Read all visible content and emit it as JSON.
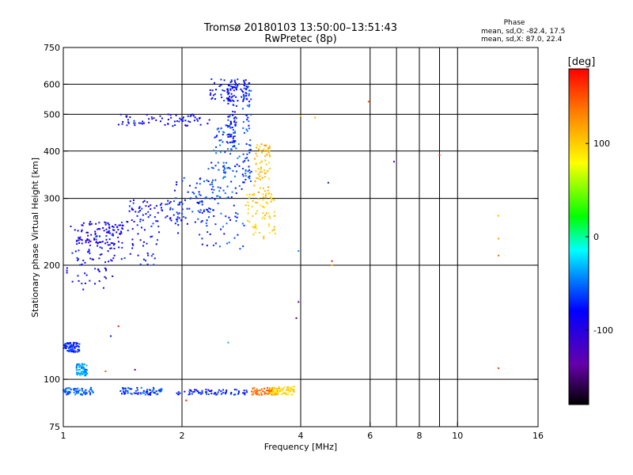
{
  "header": {
    "title_line1": "Tromsø 20180103 13:50:00–13:51:43",
    "title_line2": "RwPretec (8p)",
    "phase_heading": "Phase",
    "phase_line1": "mean, sd,O: -82.4, 17.5",
    "phase_line2": "mean, sd,X:  87.0, 22.4"
  },
  "chart_data": {
    "type": "scatter",
    "xlabel": "Frequency [MHz]",
    "ylabel": "Stationary phase Virtual Height [km]",
    "x_scale": "log",
    "y_scale": "log",
    "xlim": [
      1,
      16
    ],
    "ylim": [
      75,
      750
    ],
    "x_ticks": [
      1,
      2,
      4,
      6,
      8,
      10,
      16
    ],
    "x_tick_labels": [
      "1",
      "2",
      "4",
      "6",
      "8",
      "10",
      "16"
    ],
    "x_grid": [
      2,
      4,
      6,
      7,
      8,
      9,
      10
    ],
    "y_ticks": [
      75,
      100,
      200,
      300,
      400,
      500,
      600,
      750
    ],
    "y_tick_labels": [
      "75",
      "100",
      "200",
      "300",
      "400",
      "500",
      "600",
      "750"
    ],
    "y_grid": [
      100,
      200,
      300,
      400,
      500,
      600
    ],
    "grid": true,
    "colorbar": {
      "label": "[deg]",
      "range": [
        -180,
        180
      ],
      "ticks": [
        100,
        0,
        -100
      ],
      "tick_labels": [
        "100",
        "0",
        "-100"
      ]
    },
    "color_scale_hex": [
      "#000000",
      "#6600aa",
      "#0000ff",
      "#0088ff",
      "#00ffff",
      "#00ff00",
      "#ffff00",
      "#ff8800",
      "#ff0000"
    ],
    "clusters": [
      {
        "x": [
          1.02,
          1.35
        ],
        "h": [
          172,
          260
        ],
        "phase": -105
      },
      {
        "x": [
          1.08,
          1.42
        ],
        "h": [
          228,
          262
        ],
        "phase": -112
      },
      {
        "x": [
          1.15,
          1.75
        ],
        "h": [
          200,
          260
        ],
        "phase": -98
      },
      {
        "x": [
          1.45,
          2.05
        ],
        "h": [
          260,
          300
        ],
        "phase": -100
      },
      {
        "x": [
          1.9,
          2.45
        ],
        "h": [
          240,
          340
        ],
        "phase": -92
      },
      {
        "x": [
          2.2,
          2.9
        ],
        "h": [
          220,
          380
        ],
        "phase": -88
      },
      {
        "x": [
          2.4,
          2.8
        ],
        "h": [
          300,
          470
        ],
        "phase": -82
      },
      {
        "x": [
          2.6,
          2.75
        ],
        "h": [
          420,
          600
        ],
        "phase": -95
      },
      {
        "x": [
          2.35,
          2.95
        ],
        "h": [
          540,
          620
        ],
        "phase": -100
      },
      {
        "x": [
          1.38,
          2.35
        ],
        "h": [
          465,
          500
        ],
        "phase": -102
      },
      {
        "x": [
          2.85,
          3.0
        ],
        "h": [
          330,
          610
        ],
        "phase": -90
      },
      {
        "x": [
          2.9,
          3.45
        ],
        "h": [
          235,
          310
        ],
        "phase": 100
      },
      {
        "x": [
          3.05,
          3.35
        ],
        "h": [
          300,
          420
        ],
        "phase": 110
      },
      {
        "x": [
          1.0,
          1.1
        ],
        "h": [
          118,
          125
        ],
        "phase": -92
      },
      {
        "x": [
          1.08,
          1.15
        ],
        "h": [
          102,
          110
        ],
        "phase": -65
      },
      {
        "x": [
          1.0,
          1.2
        ],
        "h": [
          91,
          95
        ],
        "phase": -80
      },
      {
        "x": [
          1.38,
          1.78
        ],
        "h": [
          91,
          95
        ],
        "phase": -88
      },
      {
        "x": [
          1.92,
          2.95
        ],
        "h": [
          91,
          94
        ],
        "phase": -95
      },
      {
        "x": [
          3.0,
          3.5
        ],
        "h": [
          91,
          95
        ],
        "phase": 140
      },
      {
        "x": [
          3.35,
          3.85
        ],
        "h": [
          91,
          96
        ],
        "phase": 95
      }
    ],
    "points": [
      {
        "x": 4.35,
        "h": 490,
        "phase": 110
      },
      {
        "x": 4.0,
        "h": 495,
        "phase": 105
      },
      {
        "x": 5.95,
        "h": 540,
        "phase": 150
      },
      {
        "x": 6.9,
        "h": 375,
        "phase": -140
      },
      {
        "x": 9.0,
        "h": 390,
        "phase": 170
      },
      {
        "x": 4.7,
        "h": 330,
        "phase": -95
      },
      {
        "x": 4.8,
        "h": 205,
        "phase": 175
      },
      {
        "x": 4.8,
        "h": 200,
        "phase": 110
      },
      {
        "x": 3.95,
        "h": 218,
        "phase": -70
      },
      {
        "x": 3.95,
        "h": 160,
        "phase": -140
      },
      {
        "x": 3.9,
        "h": 145,
        "phase": -160
      },
      {
        "x": 12.7,
        "h": 270,
        "phase": 110
      },
      {
        "x": 12.7,
        "h": 235,
        "phase": 120
      },
      {
        "x": 12.7,
        "h": 212,
        "phase": 140
      },
      {
        "x": 12.7,
        "h": 107,
        "phase": 160
      },
      {
        "x": 1.32,
        "h": 130,
        "phase": -95
      },
      {
        "x": 1.28,
        "h": 105,
        "phase": 150
      },
      {
        "x": 1.52,
        "h": 106,
        "phase": -135
      },
      {
        "x": 1.38,
        "h": 138,
        "phase": 170
      },
      {
        "x": 2.62,
        "h": 125,
        "phase": -60
      },
      {
        "x": 2.05,
        "h": 88,
        "phase": 170
      }
    ]
  }
}
